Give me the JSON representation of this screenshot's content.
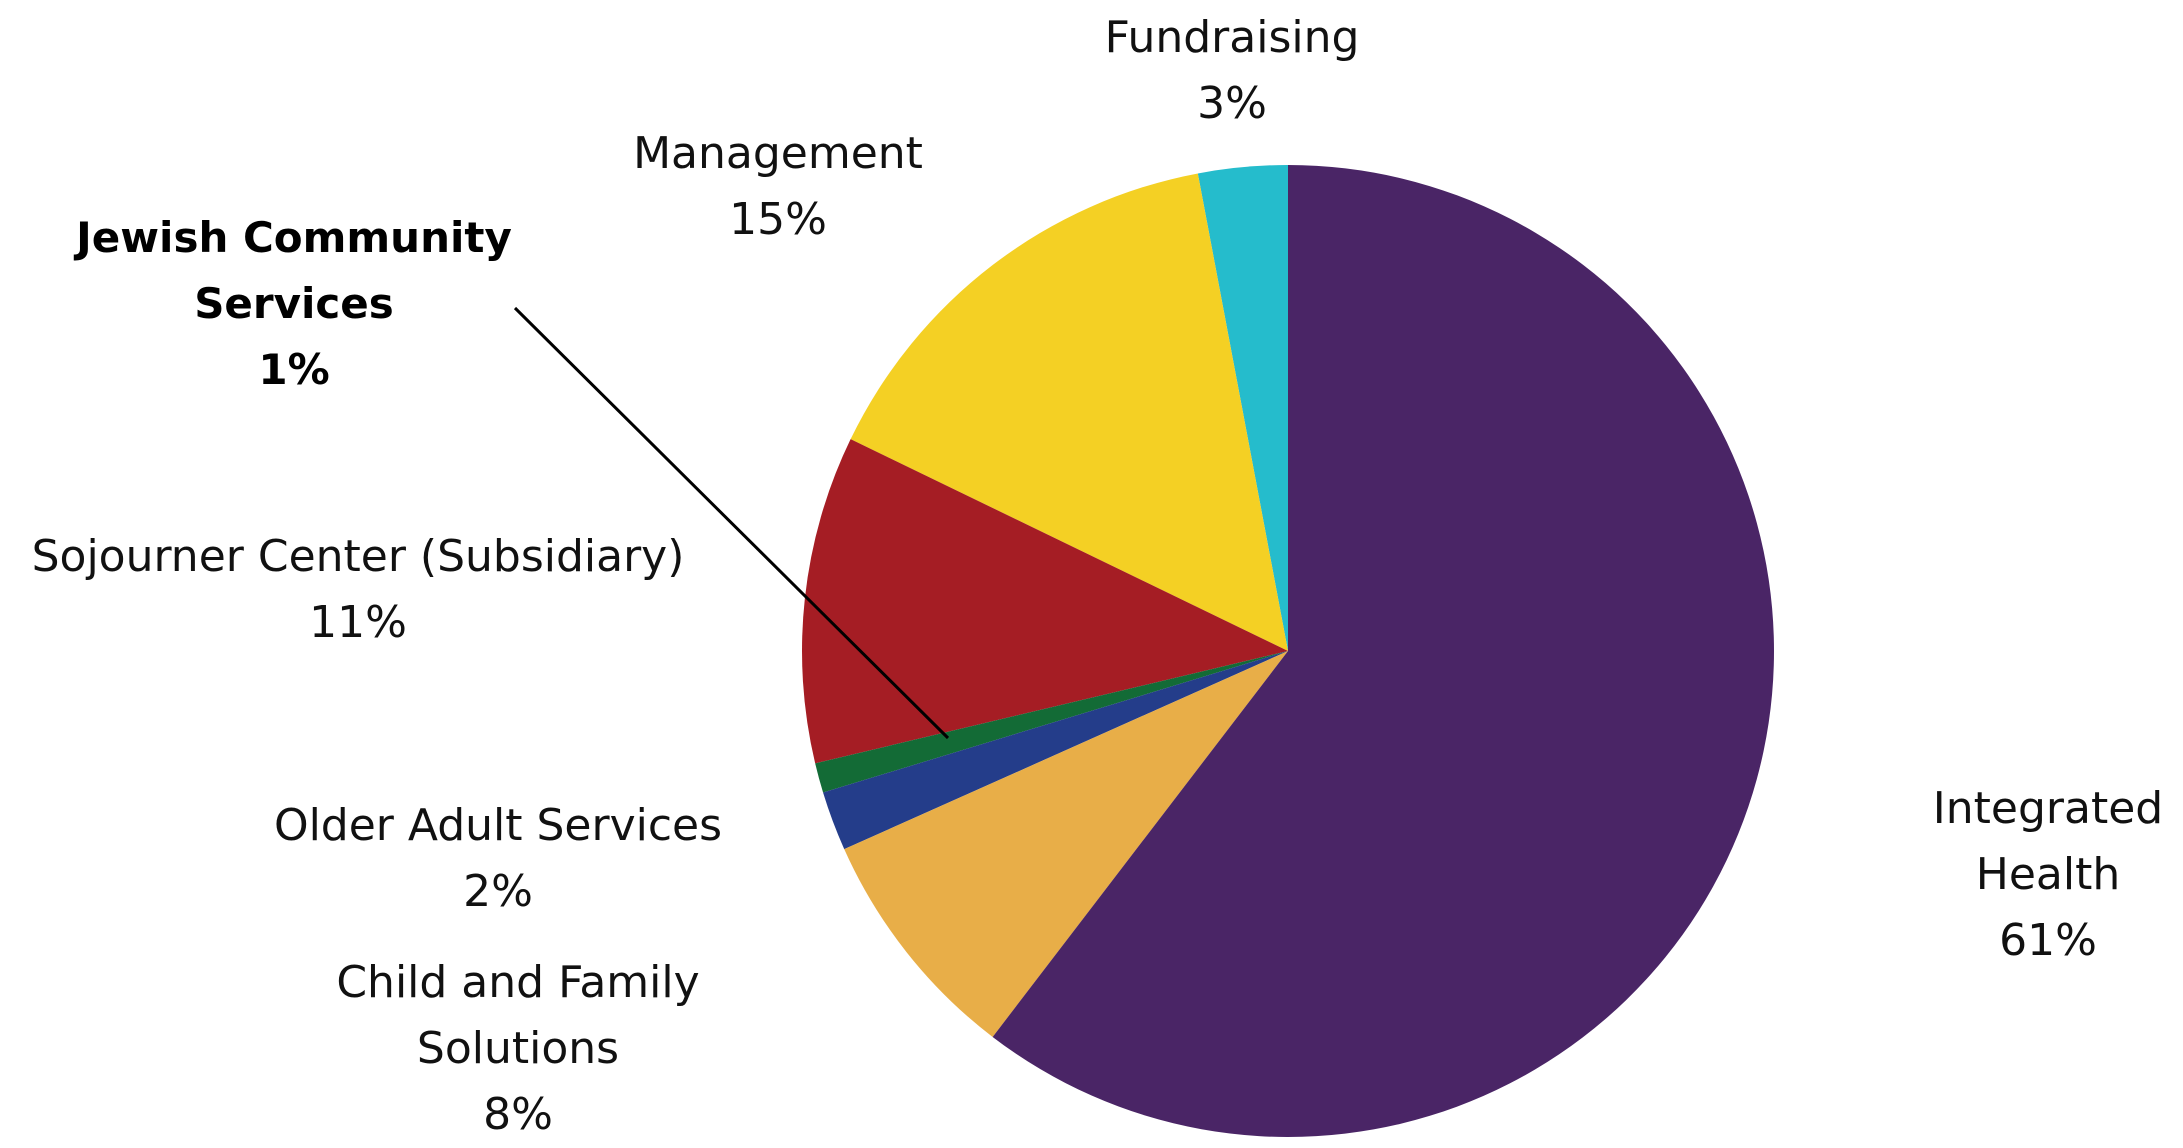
{
  "chart_data": {
    "type": "pie",
    "categories": [
      "Integrated Health",
      "Child and Family Solutions",
      "Older Adult Services",
      "Jewish Community Services",
      "Sojourner Center (Subsidiary)",
      "Management",
      "Fundraising"
    ],
    "values": [
      61,
      8,
      2,
      1,
      11,
      15,
      3
    ],
    "value_labels": [
      "61%",
      "8%",
      "2%",
      "1%",
      "11%",
      "15%",
      "3%"
    ],
    "colors": [
      "#4a2566",
      "#e8ae48",
      "#243d8a",
      "#136b36",
      "#a51d24",
      "#f4d024",
      "#25bccc"
    ]
  }
}
